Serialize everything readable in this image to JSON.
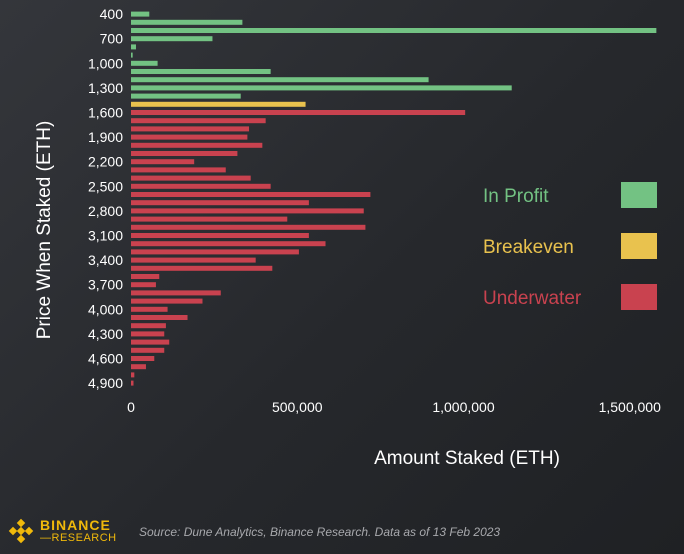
{
  "chart_data": {
    "type": "bar",
    "orientation": "horizontal",
    "ylabel": "Price When Staked (ETH)",
    "xlabel": "Amount Staked (ETH)",
    "xlim": [
      0,
      1600000
    ],
    "x_ticks": [
      {
        "value": 0,
        "label": "0"
      },
      {
        "value": 500000,
        "label": "500,000"
      },
      {
        "value": 1000000,
        "label": "1,000,000"
      },
      {
        "value": 1500000,
        "label": "1,500,000"
      }
    ],
    "y_tick_labels": [
      "400",
      "700",
      "1,000",
      "1,300",
      "1,600",
      "1,900",
      "2,200",
      "2,500",
      "2,800",
      "3,100",
      "3,400",
      "3,700",
      "4,000",
      "4,300",
      "4,600",
      "4,900"
    ],
    "categories": [
      400,
      500,
      600,
      700,
      800,
      900,
      1000,
      1100,
      1200,
      1300,
      1400,
      1500,
      1600,
      1700,
      1800,
      1900,
      2000,
      2100,
      2200,
      2300,
      2400,
      2500,
      2600,
      2700,
      2800,
      2900,
      3000,
      3100,
      3200,
      3300,
      3400,
      3500,
      3600,
      3700,
      3800,
      3900,
      4000,
      4100,
      4200,
      4300,
      4400,
      4500,
      4600,
      4700,
      4800,
      4900
    ],
    "values": [
      55000,
      335000,
      1580000,
      245000,
      15000,
      5000,
      80000,
      420000,
      895000,
      1145000,
      330000,
      525000,
      1005000,
      405000,
      355000,
      350000,
      395000,
      320000,
      190000,
      285000,
      360000,
      420000,
      720000,
      535000,
      700000,
      470000,
      705000,
      535000,
      585000,
      505000,
      375000,
      425000,
      85000,
      75000,
      270000,
      215000,
      110000,
      170000,
      105000,
      100000,
      115000,
      100000,
      70000,
      45000,
      10000,
      0
    ],
    "status": [
      "profit",
      "profit",
      "profit",
      "profit",
      "profit",
      "profit",
      "profit",
      "profit",
      "profit",
      "profit",
      "profit",
      "breakeven",
      "underwater",
      "underwater",
      "underwater",
      "underwater",
      "underwater",
      "underwater",
      "underwater",
      "underwater",
      "underwater",
      "underwater",
      "underwater",
      "underwater",
      "underwater",
      "underwater",
      "underwater",
      "underwater",
      "underwater",
      "underwater",
      "underwater",
      "underwater",
      "underwater",
      "underwater",
      "underwater",
      "underwater",
      "underwater",
      "underwater",
      "underwater",
      "underwater",
      "underwater",
      "underwater",
      "underwater",
      "underwater",
      "underwater",
      "underwater"
    ],
    "legend": [
      {
        "key": "profit",
        "label": "In Profit",
        "color": "#73c283"
      },
      {
        "key": "breakeven",
        "label": "Breakeven",
        "color": "#e9c24e"
      },
      {
        "key": "underwater",
        "label": "Underwater",
        "color": "#c9424f"
      }
    ],
    "legend_position": "right",
    "grid": false
  },
  "footer": {
    "brand_name": "BINANCE",
    "brand_sub": "RESEARCH",
    "source": "Source: Dune Analytics, Binance Research. Data as of 13 Feb 2023"
  }
}
